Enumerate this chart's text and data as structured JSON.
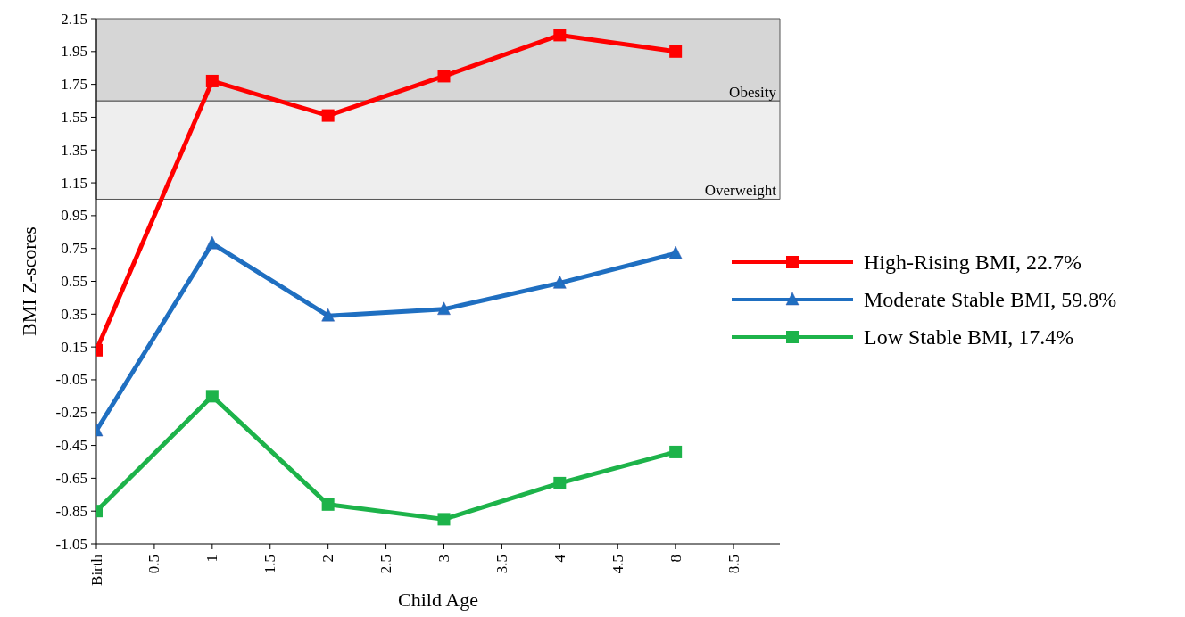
{
  "chart_data": {
    "type": "line",
    "xlabel": "Child Age",
    "ylabel": "BMI  Z-scores",
    "categories": [
      "Birth",
      "0.5",
      "1",
      "1.5",
      "2",
      "2.5",
      "3",
      "3.5",
      "4",
      "4.5",
      "8",
      "8.5"
    ],
    "ylim": [
      -1.05,
      2.15
    ],
    "yticks": [
      -1.05,
      -0.85,
      -0.65,
      -0.45,
      -0.25,
      -0.05,
      0.15,
      0.35,
      0.55,
      0.75,
      0.95,
      1.15,
      1.35,
      1.55,
      1.75,
      1.95,
      2.15
    ],
    "series": [
      {
        "name": "High-Rising BMI, 22.7%",
        "color": "#ff0000",
        "marker": "square",
        "x": [
          "Birth",
          "1",
          "2",
          "3",
          "4",
          "8"
        ],
        "values": [
          0.13,
          1.77,
          1.56,
          1.8,
          2.05,
          1.95
        ]
      },
      {
        "name": "Moderate Stable BMI, 59.8%",
        "color": "#1f6fc1",
        "marker": "triangle",
        "x": [
          "Birth",
          "1",
          "2",
          "3",
          "4",
          "8"
        ],
        "values": [
          -0.36,
          0.78,
          0.34,
          0.38,
          0.54,
          0.72
        ]
      },
      {
        "name": "Low Stable BMI, 17.4%",
        "color": "#1db34a",
        "marker": "square",
        "x": [
          "Birth",
          "1",
          "2",
          "3",
          "4",
          "8"
        ],
        "values": [
          -0.85,
          -0.15,
          -0.81,
          -0.9,
          -0.68,
          -0.49
        ]
      }
    ],
    "bands": [
      {
        "axis": "y",
        "from": 1.05,
        "to": 1.65,
        "label": "Overweight",
        "color": "#eeeeee"
      },
      {
        "axis": "y",
        "from": 1.65,
        "to": 2.15,
        "label": "Obesity",
        "color": "#d6d6d6"
      }
    ],
    "legend": "right",
    "line_style": "solid"
  }
}
